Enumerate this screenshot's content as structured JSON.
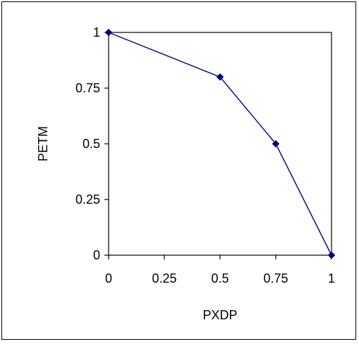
{
  "chart_data": {
    "type": "scatter",
    "xlabel": "PXDP",
    "ylabel": "PETM",
    "xlim": [
      0,
      1
    ],
    "ylim": [
      0,
      1
    ],
    "x_ticks": [
      "0",
      "0.25",
      "0.5",
      "0.75",
      "1"
    ],
    "y_ticks": [
      "0",
      "0.25",
      "0.5",
      "0.75",
      "1"
    ],
    "grid": false,
    "legend": "none",
    "marker": "diamond",
    "line_color": "#000080",
    "marker_color": "#000080",
    "series": [
      {
        "points": [
          {
            "x": 0,
            "y": 1
          },
          {
            "x": 0.5,
            "y": 0.8
          },
          {
            "x": 0.75,
            "y": 0.5
          },
          {
            "x": 1,
            "y": 0
          }
        ]
      }
    ]
  }
}
